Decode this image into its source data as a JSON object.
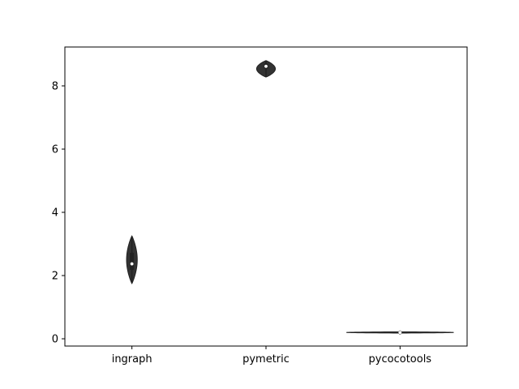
{
  "chart_data": {
    "type": "violin",
    "categories": [
      "ingraph",
      "pymetric",
      "pycocotools"
    ],
    "yticks": [
      "0",
      "2",
      "4",
      "6",
      "8"
    ],
    "ylim": [
      -0.23,
      9.23
    ],
    "violins": [
      {
        "name": "ingraph",
        "min": 1.75,
        "q1": 2.18,
        "median": 2.37,
        "q3": 2.72,
        "max": 3.25,
        "max_halfwidth": 0.04
      },
      {
        "name": "pymetric",
        "min": 8.28,
        "q1": 8.55,
        "median": 8.62,
        "q3": 8.7,
        "max": 8.8,
        "max_halfwidth": 0.07
      },
      {
        "name": "pycocotools",
        "min": 0.18,
        "q1": 0.19,
        "median": 0.2,
        "q3": 0.21,
        "max": 0.22,
        "max_halfwidth": 0.4
      }
    ],
    "xlabel": "",
    "ylabel": "",
    "title": "",
    "grid": false,
    "colors": {
      "violin": "#333333",
      "edge": "#222222",
      "median": "#ffffff"
    }
  }
}
